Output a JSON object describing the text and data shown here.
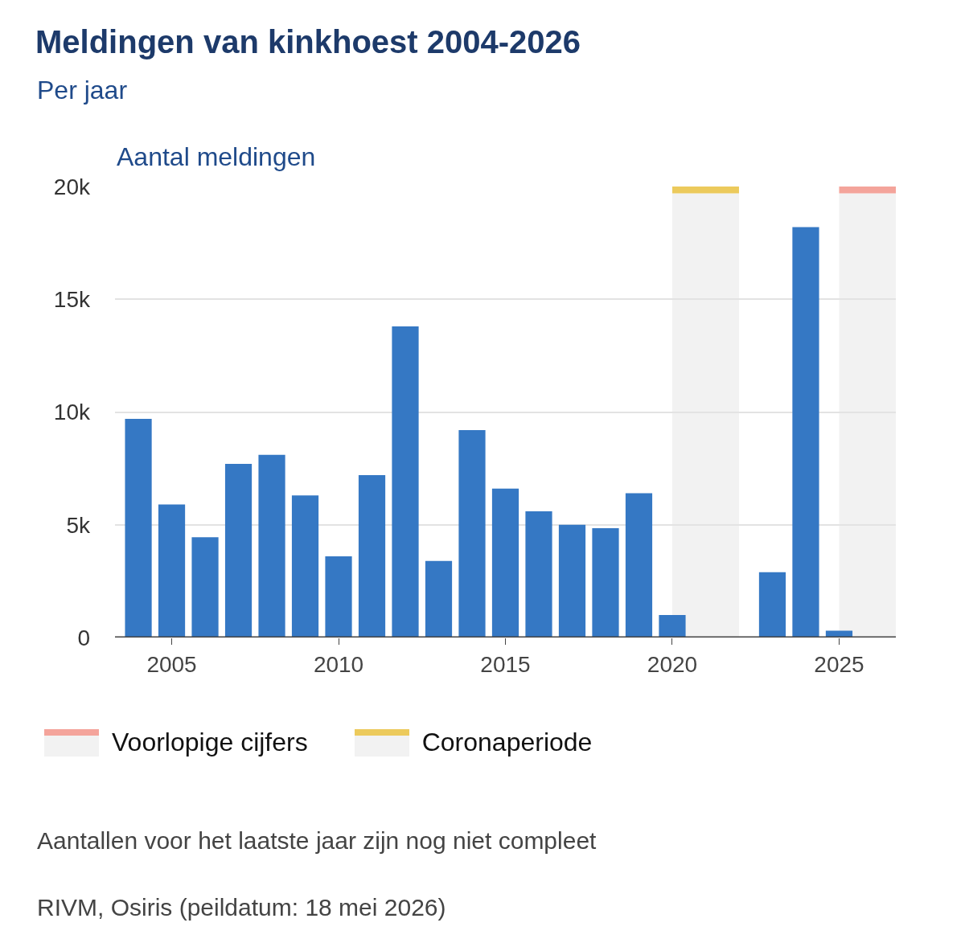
{
  "chart_data": {
    "type": "bar",
    "title": "Meldingen van kinkhoest 2004-2026",
    "subtitle": "Per jaar",
    "ylabel": "Aantal meldingen",
    "x": [
      2004,
      2005,
      2006,
      2007,
      2008,
      2009,
      2010,
      2011,
      2012,
      2013,
      2014,
      2015,
      2016,
      2017,
      2018,
      2019,
      2020,
      2021,
      2022,
      2023,
      2024,
      2025
    ],
    "values": [
      9700,
      5900,
      4450,
      7700,
      8100,
      6300,
      3600,
      7200,
      13800,
      3400,
      9200,
      6600,
      5600,
      5000,
      4850,
      6400,
      1000,
      null,
      null,
      2900,
      18200,
      300
    ],
    "color": "#3578c4",
    "xlim": [
      2003.3,
      2026.7
    ],
    "xticks": [
      2005,
      2010,
      2015,
      2020,
      2025
    ],
    "ylim": [
      0,
      20000
    ],
    "yticks": [
      0,
      {
        "value": 5000,
        "label": "5k"
      },
      {
        "value": 10000,
        "label": "10k"
      },
      {
        "value": 15000,
        "label": "15k"
      },
      {
        "value": 20000,
        "label": "20k"
      }
    ],
    "grid": "y",
    "legend": "bottom",
    "bands": [
      {
        "axis": "x",
        "from": 2025,
        "to": 2026.7,
        "label": "Voorlopige cijfers",
        "color": "#f2f2f2"
      },
      {
        "axis": "x",
        "from": 2020,
        "to": 2022,
        "label": "Coronaperiode",
        "color": "#f2f2f2"
      }
    ],
    "annotations": [
      "Aantallen voor het laatste jaar zijn nog niet compleet",
      "RIVM, Osiris (peildatum: 18 mei 2026)"
    ]
  }
}
